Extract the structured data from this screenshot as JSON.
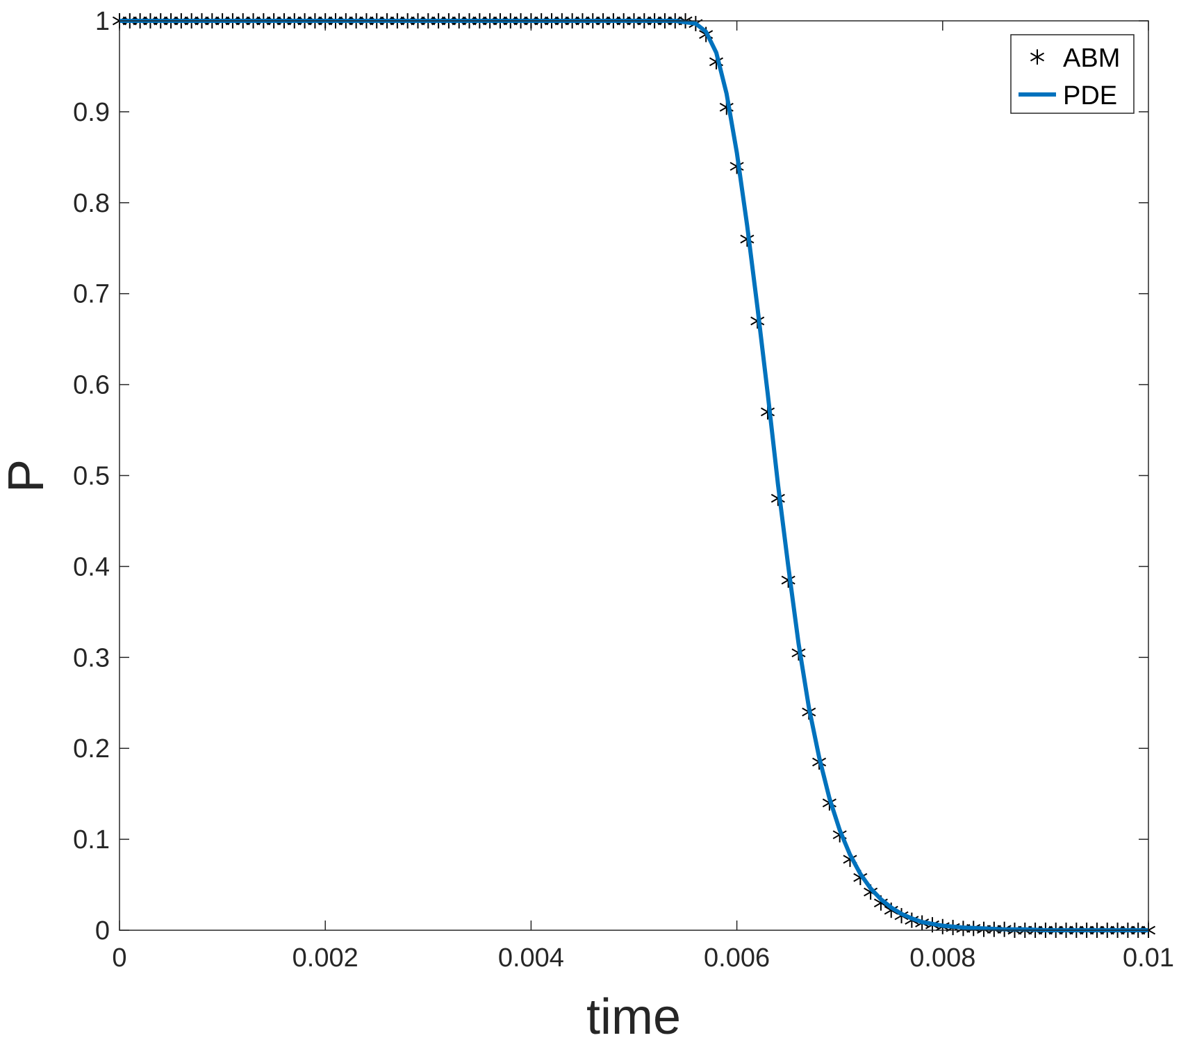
{
  "chart_data": {
    "type": "line",
    "xlabel": "time",
    "ylabel": "P",
    "xlim": [
      0,
      0.01
    ],
    "ylim": [
      0,
      1
    ],
    "xticks": [
      0,
      0.002,
      0.004,
      0.006,
      0.008,
      0.01
    ],
    "xtick_labels": [
      "0",
      "0.002",
      "0.004",
      "0.006",
      "0.008",
      "0.01"
    ],
    "yticks": [
      0,
      0.1,
      0.2,
      0.3,
      0.4,
      0.5,
      0.6,
      0.7,
      0.8,
      0.9,
      1
    ],
    "ytick_labels": [
      "0",
      "0.1",
      "0.2",
      "0.3",
      "0.4",
      "0.5",
      "0.6",
      "0.7",
      "0.8",
      "0.9",
      "1"
    ],
    "grid": false,
    "legend_position": "top-right",
    "series": [
      {
        "name": "ABM",
        "style": "markers",
        "marker": "asterisk",
        "color": "#000000",
        "x": [
          0,
          0.0001,
          0.0002,
          0.0003,
          0.0004,
          0.0005,
          0.0006,
          0.0007,
          0.0008,
          0.0009,
          0.001,
          0.0011,
          0.0012,
          0.0013,
          0.0014,
          0.0015,
          0.0016,
          0.0017,
          0.0018,
          0.0019,
          0.002,
          0.0021,
          0.0022,
          0.0023,
          0.0024,
          0.0025,
          0.0026,
          0.0027,
          0.0028,
          0.0029,
          0.003,
          0.0031,
          0.0032,
          0.0033,
          0.0034,
          0.0035,
          0.0036,
          0.0037,
          0.0038,
          0.0039,
          0.004,
          0.0041,
          0.0042,
          0.0043,
          0.0044,
          0.0045,
          0.0046,
          0.0047,
          0.0048,
          0.0049,
          0.005,
          0.0051,
          0.0052,
          0.0053,
          0.0054,
          0.0055,
          0.0056,
          0.0057,
          0.0058,
          0.0059,
          0.006,
          0.0061,
          0.0062,
          0.0063,
          0.0064,
          0.0065,
          0.0066,
          0.0067,
          0.0068,
          0.0069,
          0.007,
          0.0071,
          0.0072,
          0.0073,
          0.0074,
          0.0075,
          0.0076,
          0.0077,
          0.0078,
          0.0079,
          0.008,
          0.0081,
          0.0082,
          0.0083,
          0.0084,
          0.0085,
          0.0086,
          0.0087,
          0.0088,
          0.0089,
          0.009,
          0.0091,
          0.0092,
          0.0093,
          0.0094,
          0.0095,
          0.0096,
          0.0097,
          0.0098,
          0.0099,
          0.01
        ],
        "y": [
          1,
          1,
          1,
          1,
          1,
          1,
          1,
          1,
          1,
          1,
          1,
          1,
          1,
          1,
          1,
          1,
          1,
          1,
          1,
          1,
          1,
          1,
          1,
          1,
          1,
          1,
          1,
          1,
          1,
          1,
          1,
          1,
          1,
          1,
          1,
          1,
          1,
          1,
          1,
          1,
          1,
          1,
          1,
          1,
          1,
          1,
          1,
          1,
          1,
          1,
          1,
          1,
          1,
          1,
          1,
          1,
          0.997,
          0.985,
          0.955,
          0.905,
          0.84,
          0.76,
          0.67,
          0.57,
          0.475,
          0.385,
          0.305,
          0.24,
          0.185,
          0.14,
          0.105,
          0.078,
          0.058,
          0.042,
          0.03,
          0.022,
          0.016,
          0.011,
          0.008,
          0.006,
          0.004,
          0.003,
          0.002,
          0.002,
          0.001,
          0.001,
          0.001,
          0,
          0,
          0,
          0,
          0,
          0,
          0,
          0,
          0,
          0,
          0,
          0,
          0,
          0
        ]
      },
      {
        "name": "PDE",
        "style": "line",
        "color": "#0072BD",
        "x": [
          0,
          0.001,
          0.002,
          0.003,
          0.004,
          0.005,
          0.0054,
          0.0056,
          0.0057,
          0.0058,
          0.0059,
          0.006,
          0.0061,
          0.0062,
          0.0063,
          0.0064,
          0.0065,
          0.0066,
          0.0067,
          0.0068,
          0.0069,
          0.007,
          0.0071,
          0.0072,
          0.0073,
          0.0074,
          0.0075,
          0.0076,
          0.0077,
          0.0078,
          0.0079,
          0.008,
          0.0082,
          0.0084,
          0.0086,
          0.0088,
          0.009,
          0.0095,
          0.01
        ],
        "y": [
          1,
          1,
          1,
          1,
          1,
          1,
          1,
          0.997,
          0.988,
          0.965,
          0.92,
          0.855,
          0.775,
          0.685,
          0.59,
          0.49,
          0.4,
          0.315,
          0.245,
          0.19,
          0.145,
          0.11,
          0.083,
          0.062,
          0.046,
          0.034,
          0.025,
          0.018,
          0.013,
          0.009,
          0.007,
          0.005,
          0.003,
          0.002,
          0.001,
          0.001,
          0,
          0,
          0
        ]
      }
    ]
  }
}
